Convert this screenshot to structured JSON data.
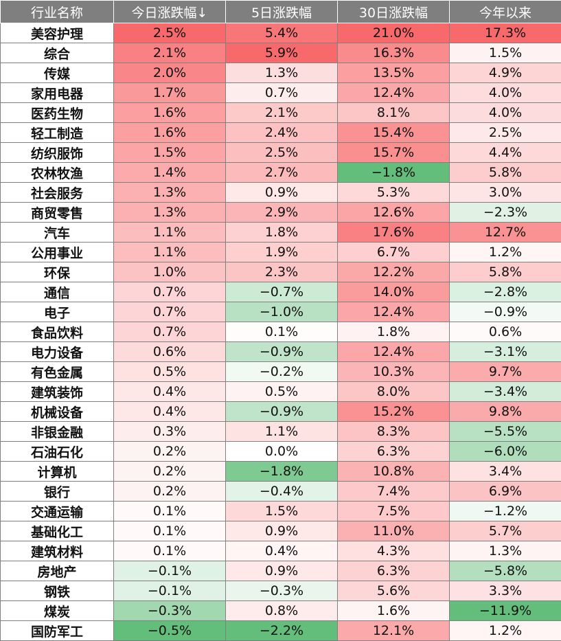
{
  "chart_data": {
    "type": "table",
    "headers": [
      "行业名称",
      "今日涨跌幅↓",
      "5日涨跌幅",
      "30日涨跌幅",
      "今年以来"
    ],
    "rows": [
      [
        "美容护理",
        "2.5%",
        "5.4%",
        "21.0%",
        "17.3%"
      ],
      [
        "综合",
        "2.1%",
        "5.9%",
        "16.3%",
        "1.5%"
      ],
      [
        "传媒",
        "2.0%",
        "1.3%",
        "13.5%",
        "4.9%"
      ],
      [
        "家用电器",
        "1.7%",
        "0.7%",
        "12.4%",
        "4.0%"
      ],
      [
        "医药生物",
        "1.6%",
        "2.1%",
        "8.1%",
        "4.0%"
      ],
      [
        "轻工制造",
        "1.6%",
        "2.4%",
        "15.4%",
        "2.5%"
      ],
      [
        "纺织服饰",
        "1.5%",
        "2.5%",
        "15.7%",
        "4.4%"
      ],
      [
        "农林牧渔",
        "1.4%",
        "2.7%",
        "−1.8%",
        "5.8%"
      ],
      [
        "社会服务",
        "1.3%",
        "0.9%",
        "5.3%",
        "3.0%"
      ],
      [
        "商贸零售",
        "1.3%",
        "2.9%",
        "12.6%",
        "−2.3%"
      ],
      [
        "汽车",
        "1.1%",
        "1.8%",
        "17.6%",
        "12.7%"
      ],
      [
        "公用事业",
        "1.1%",
        "1.9%",
        "6.7%",
        "1.2%"
      ],
      [
        "环保",
        "1.0%",
        "2.3%",
        "12.2%",
        "5.8%"
      ],
      [
        "通信",
        "0.7%",
        "−0.7%",
        "14.0%",
        "−2.8%"
      ],
      [
        "电子",
        "0.7%",
        "−1.0%",
        "12.4%",
        "−0.9%"
      ],
      [
        "食品饮料",
        "0.7%",
        "0.1%",
        "1.8%",
        "0.6%"
      ],
      [
        "电力设备",
        "0.6%",
        "−0.9%",
        "12.4%",
        "−3.1%"
      ],
      [
        "有色金属",
        "0.5%",
        "−0.2%",
        "10.3%",
        "9.7%"
      ],
      [
        "建筑装饰",
        "0.4%",
        "0.5%",
        "8.0%",
        "−3.4%"
      ],
      [
        "机械设备",
        "0.4%",
        "−0.9%",
        "15.2%",
        "9.8%"
      ],
      [
        "非银金融",
        "0.3%",
        "1.1%",
        "8.3%",
        "−5.5%"
      ],
      [
        "石油石化",
        "0.2%",
        "0.0%",
        "6.3%",
        "−6.0%"
      ],
      [
        "计算机",
        "0.2%",
        "−1.8%",
        "10.8%",
        "3.4%"
      ],
      [
        "银行",
        "0.2%",
        "−0.4%",
        "7.4%",
        "6.9%"
      ],
      [
        "交通运输",
        "0.1%",
        "1.5%",
        "7.5%",
        "−1.2%"
      ],
      [
        "基础化工",
        "0.1%",
        "0.9%",
        "11.0%",
        "5.7%"
      ],
      [
        "建筑材料",
        "0.1%",
        "0.4%",
        "4.3%",
        "1.3%"
      ],
      [
        "房地产",
        "−0.1%",
        "0.9%",
        "6.3%",
        "−5.8%"
      ],
      [
        "钢铁",
        "−0.1%",
        "−0.3%",
        "5.6%",
        "3.3%"
      ],
      [
        "煤炭",
        "−0.3%",
        "0.8%",
        "1.6%",
        "−11.9%"
      ],
      [
        "国防军工",
        "−0.5%",
        "−2.2%",
        "12.1%",
        "1.2%"
      ]
    ],
    "colors": {
      "header_bg": "#7f7f7f",
      "positive": "#f8696b",
      "negative": "#63be7b",
      "neutral": "#ffffff"
    }
  }
}
